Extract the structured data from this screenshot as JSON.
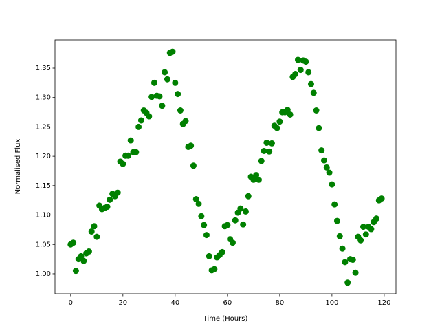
{
  "chart_data": {
    "type": "scatter",
    "x_label": "Time (Hours)",
    "y_label": "Normalised Flux",
    "color": "#008000",
    "x": [
      0,
      1,
      2,
      3,
      4,
      5,
      6,
      7,
      8,
      9,
      10,
      11,
      12,
      13,
      14,
      15,
      16,
      17,
      18,
      19,
      20,
      21,
      22,
      23,
      24,
      25,
      26,
      27,
      28,
      29,
      30,
      31,
      32,
      33,
      34,
      35,
      36,
      37,
      38,
      39,
      40,
      41,
      42,
      43,
      44,
      45,
      46,
      47,
      48,
      49,
      50,
      51,
      52,
      53,
      54,
      55,
      56,
      57,
      58,
      59,
      60,
      61,
      62,
      63,
      64,
      65,
      66,
      67,
      68,
      69,
      70,
      71,
      72,
      73,
      74,
      75,
      76,
      77,
      78,
      79,
      80,
      81,
      82,
      83,
      84,
      85,
      86,
      87,
      88,
      89,
      90,
      91,
      92,
      93,
      94,
      95,
      96,
      97,
      98,
      99,
      100,
      101,
      102,
      103,
      104,
      105,
      106,
      107,
      108,
      109,
      110,
      111,
      112,
      113,
      114,
      115,
      116,
      117,
      118,
      119
    ],
    "values": [
      1.05,
      1.053,
      1.005,
      1.025,
      1.03,
      1.022,
      1.035,
      1.038,
      1.072,
      1.081,
      1.063,
      1.116,
      1.11,
      1.112,
      1.114,
      1.126,
      1.136,
      1.132,
      1.138,
      1.191,
      1.187,
      1.201,
      1.201,
      1.227,
      1.207,
      1.207,
      1.25,
      1.261,
      1.278,
      1.274,
      1.268,
      1.301,
      1.325,
      1.303,
      1.302,
      1.286,
      1.343,
      1.331,
      1.376,
      1.378,
      1.325,
      1.306,
      1.278,
      1.255,
      1.26,
      1.216,
      1.218,
      1.184,
      1.127,
      1.119,
      1.098,
      1.083,
      1.066,
      1.03,
      1.006,
      1.008,
      1.028,
      1.032,
      1.037,
      1.081,
      1.083,
      1.059,
      1.053,
      1.091,
      1.104,
      1.111,
      1.084,
      1.106,
      1.132,
      1.165,
      1.16,
      1.168,
      1.16,
      1.192,
      1.209,
      1.223,
      1.208,
      1.222,
      1.252,
      1.248,
      1.259,
      1.275,
      1.275,
      1.279,
      1.271,
      1.335,
      1.34,
      1.364,
      1.347,
      1.363,
      1.361,
      1.343,
      1.323,
      1.308,
      1.278,
      1.248,
      1.21,
      1.193,
      1.181,
      1.172,
      1.152,
      1.118,
      1.09,
      1.064,
      1.043,
      1.02,
      0.985,
      1.025,
      1.024,
      1.002,
      1.063,
      1.057,
      1.08,
      1.067,
      1.08,
      1.076,
      1.088,
      1.094,
      1.125,
      1.128
    ],
    "xlim": [
      -6,
      124.5
    ],
    "ylim": [
      0.966,
      1.398
    ],
    "xticks": [
      0,
      20,
      40,
      60,
      80,
      100,
      120
    ],
    "yticks": [
      {
        "value": 1.0,
        "label": "1.00"
      },
      1.05,
      {
        "value": 1.1,
        "label": "1.10"
      },
      1.15,
      {
        "value": 1.2,
        "label": "1.20"
      },
      1.25,
      {
        "value": 1.3,
        "label": "1.30"
      },
      1.35
    ]
  }
}
